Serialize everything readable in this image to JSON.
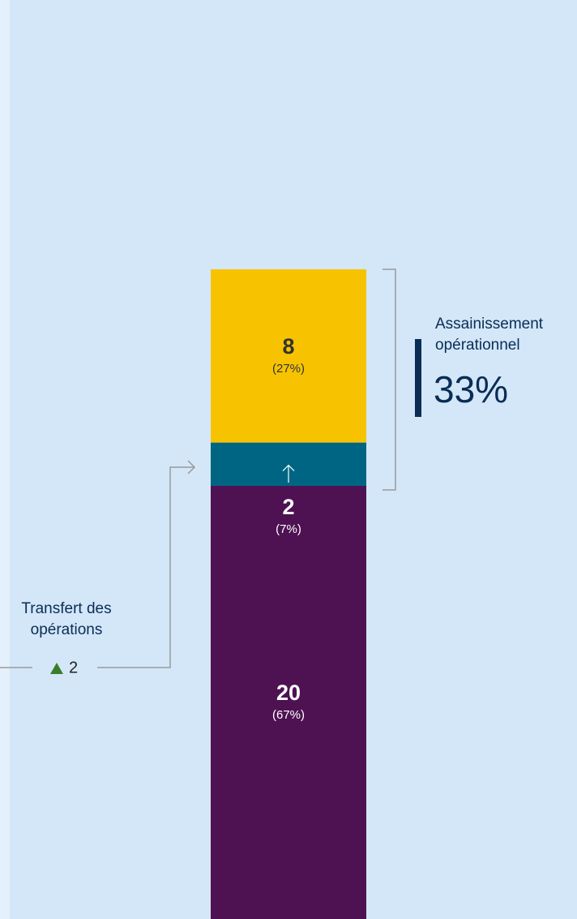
{
  "chart_data": {
    "type": "stacked-bar",
    "segments": [
      {
        "value": 20,
        "share": 67,
        "share_label": "(67%)",
        "color": "#4e1253",
        "text_color": "#ffffff"
      },
      {
        "value": 2,
        "share": 7,
        "share_label": "(7%)",
        "color": "#006582",
        "text_color": "#ffffff"
      },
      {
        "value": 8,
        "share": 27,
        "share_label": "(27%)",
        "color": "#f7c300",
        "text_color": "#333333"
      }
    ],
    "ylim": [
      0,
      30
    ],
    "annotations": [
      {
        "lines": [
          "Assainissement",
          "opérationnel"
        ],
        "value": 33,
        "label": "33%"
      },
      {
        "lines": [
          "Transfert des",
          "opérations"
        ],
        "value": 2,
        "label": "2"
      }
    ]
  }
}
